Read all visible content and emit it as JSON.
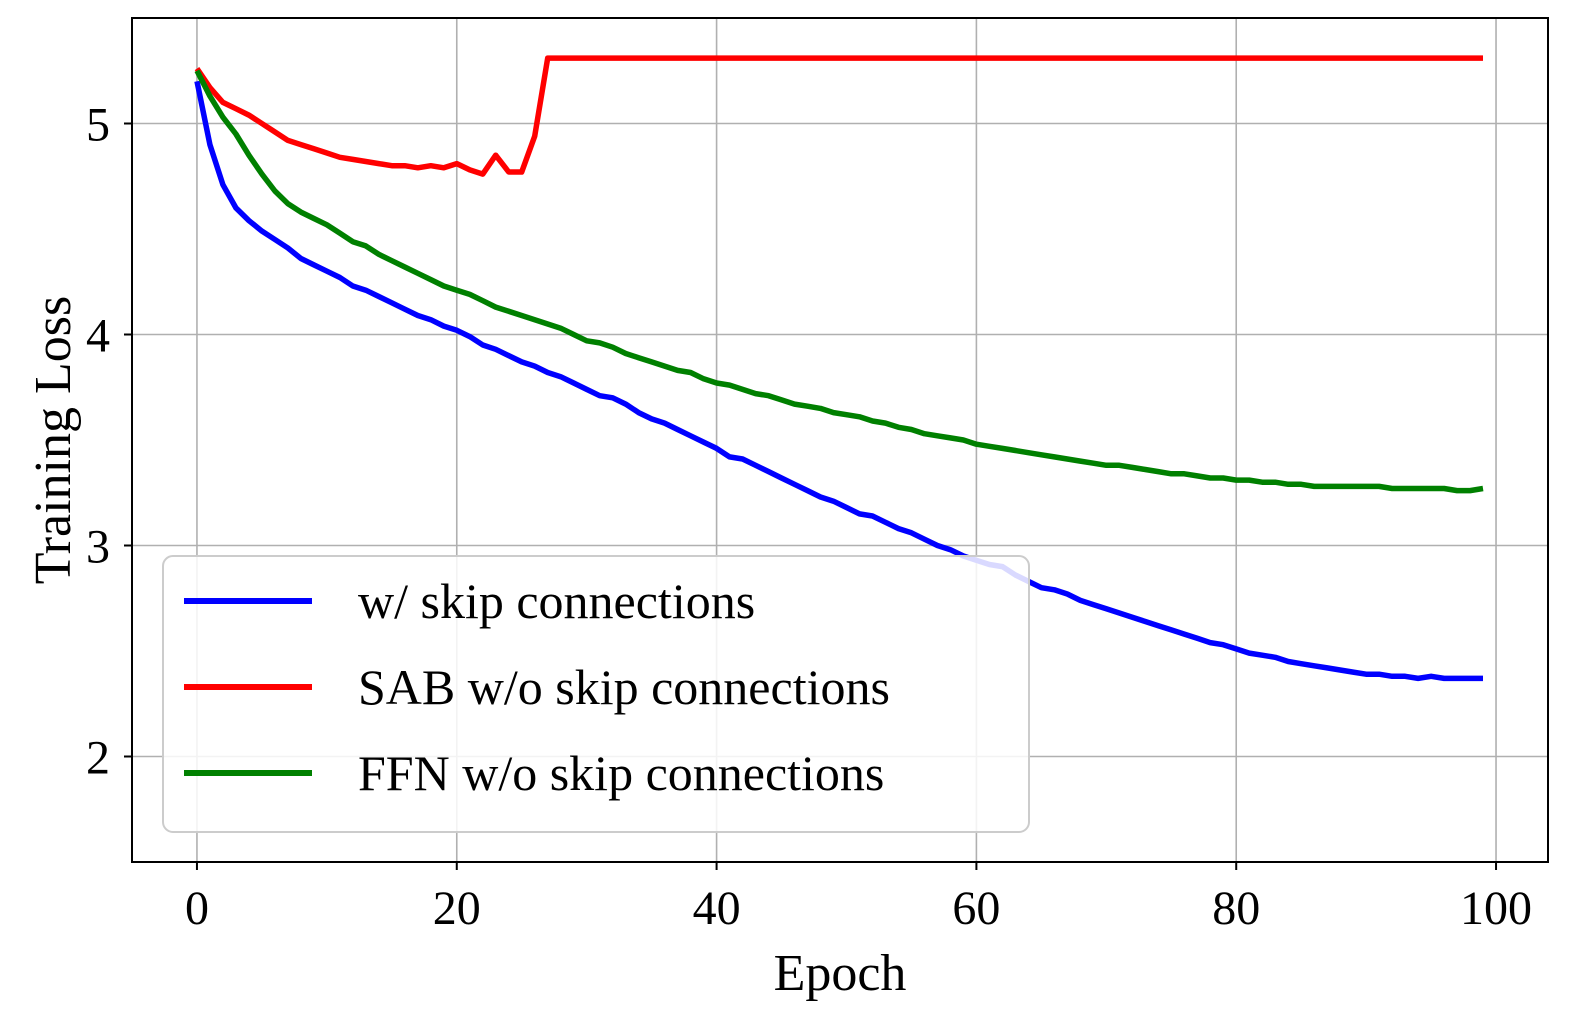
{
  "chart_data": {
    "type": "line",
    "title": "",
    "xlabel": "Epoch",
    "ylabel": "Training Loss",
    "xlim": [
      -5,
      104
    ],
    "ylim": [
      1.5,
      5.5
    ],
    "xticks": [
      0,
      20,
      40,
      60,
      80,
      100
    ],
    "yticks": [
      2,
      3,
      4,
      5
    ],
    "grid": true,
    "legend_position": "lower-left",
    "series": [
      {
        "name": "w/ skip connections",
        "color": "#0000ff",
        "x": [
          0,
          1,
          2,
          3,
          4,
          5,
          6,
          7,
          8,
          9,
          10,
          11,
          12,
          13,
          14,
          15,
          16,
          17,
          18,
          19,
          20,
          21,
          22,
          23,
          24,
          25,
          26,
          27,
          28,
          29,
          30,
          31,
          32,
          33,
          34,
          35,
          36,
          37,
          38,
          39,
          40,
          41,
          42,
          43,
          44,
          45,
          46,
          47,
          48,
          49,
          50,
          51,
          52,
          53,
          54,
          55,
          56,
          57,
          58,
          59,
          60,
          61,
          62,
          63,
          64,
          65,
          66,
          67,
          68,
          69,
          70,
          71,
          72,
          73,
          74,
          75,
          76,
          77,
          78,
          79,
          80,
          81,
          82,
          83,
          84,
          85,
          86,
          87,
          88,
          89,
          90,
          91,
          92,
          93,
          94,
          95,
          96,
          97,
          98,
          99
        ],
        "y": [
          5.2,
          4.9,
          4.71,
          4.6,
          4.54,
          4.49,
          4.45,
          4.41,
          4.36,
          4.33,
          4.3,
          4.27,
          4.23,
          4.21,
          4.18,
          4.15,
          4.12,
          4.09,
          4.07,
          4.04,
          4.02,
          3.99,
          3.95,
          3.93,
          3.9,
          3.87,
          3.85,
          3.82,
          3.8,
          3.77,
          3.74,
          3.71,
          3.7,
          3.67,
          3.63,
          3.6,
          3.58,
          3.55,
          3.52,
          3.49,
          3.46,
          3.42,
          3.41,
          3.38,
          3.35,
          3.32,
          3.29,
          3.26,
          3.23,
          3.21,
          3.18,
          3.15,
          3.14,
          3.11,
          3.08,
          3.06,
          3.03,
          3.0,
          2.98,
          2.95,
          2.93,
          2.91,
          2.9,
          2.86,
          2.83,
          2.8,
          2.79,
          2.77,
          2.74,
          2.72,
          2.7,
          2.68,
          2.66,
          2.64,
          2.62,
          2.6,
          2.58,
          2.56,
          2.54,
          2.53,
          2.51,
          2.49,
          2.48,
          2.47,
          2.45,
          2.44,
          2.43,
          2.42,
          2.41,
          2.4,
          2.39,
          2.39,
          2.38,
          2.38,
          2.37,
          2.38,
          2.37,
          2.37,
          2.37,
          2.37
        ]
      },
      {
        "name": "SAB w/o skip connections",
        "color": "#ff0000",
        "x": [
          0,
          1,
          2,
          3,
          4,
          5,
          6,
          7,
          8,
          9,
          10,
          11,
          12,
          13,
          14,
          15,
          16,
          17,
          18,
          19,
          20,
          21,
          22,
          23,
          24,
          25,
          26,
          27,
          28,
          29,
          30,
          31,
          32,
          33,
          34,
          35,
          36,
          37,
          38,
          39,
          40,
          41,
          42,
          43,
          44,
          45,
          46,
          47,
          48,
          49,
          50,
          51,
          52,
          53,
          54,
          55,
          56,
          57,
          58,
          59,
          60,
          61,
          62,
          63,
          64,
          65,
          66,
          67,
          68,
          69,
          70,
          71,
          72,
          73,
          74,
          75,
          76,
          77,
          78,
          79,
          80,
          81,
          82,
          83,
          84,
          85,
          86,
          87,
          88,
          89,
          90,
          91,
          92,
          93,
          94,
          95,
          96,
          97,
          98,
          99
        ],
        "y": [
          5.26,
          5.17,
          5.1,
          5.07,
          5.04,
          5.0,
          4.96,
          4.92,
          4.9,
          4.88,
          4.86,
          4.84,
          4.83,
          4.82,
          4.81,
          4.8,
          4.8,
          4.79,
          4.8,
          4.79,
          4.81,
          4.78,
          4.76,
          4.85,
          4.77,
          4.77,
          4.94,
          5.31,
          5.31,
          5.31,
          5.31,
          5.31,
          5.31,
          5.31,
          5.31,
          5.31,
          5.31,
          5.31,
          5.31,
          5.31,
          5.31,
          5.31,
          5.31,
          5.31,
          5.31,
          5.31,
          5.31,
          5.31,
          5.31,
          5.31,
          5.31,
          5.31,
          5.31,
          5.31,
          5.31,
          5.31,
          5.31,
          5.31,
          5.31,
          5.31,
          5.31,
          5.31,
          5.31,
          5.31,
          5.31,
          5.31,
          5.31,
          5.31,
          5.31,
          5.31,
          5.31,
          5.31,
          5.31,
          5.31,
          5.31,
          5.31,
          5.31,
          5.31,
          5.31,
          5.31,
          5.31,
          5.31,
          5.31,
          5.31,
          5.31,
          5.31,
          5.31,
          5.31,
          5.31,
          5.31,
          5.31,
          5.31,
          5.31,
          5.31,
          5.31,
          5.31,
          5.31,
          5.31,
          5.31,
          5.31
        ]
      },
      {
        "name": "FFN w/o skip connections",
        "color": "#008000",
        "x": [
          0,
          1,
          2,
          3,
          4,
          5,
          6,
          7,
          8,
          9,
          10,
          11,
          12,
          13,
          14,
          15,
          16,
          17,
          18,
          19,
          20,
          21,
          22,
          23,
          24,
          25,
          26,
          27,
          28,
          29,
          30,
          31,
          32,
          33,
          34,
          35,
          36,
          37,
          38,
          39,
          40,
          41,
          42,
          43,
          44,
          45,
          46,
          47,
          48,
          49,
          50,
          51,
          52,
          53,
          54,
          55,
          56,
          57,
          58,
          59,
          60,
          61,
          62,
          63,
          64,
          65,
          66,
          67,
          68,
          69,
          70,
          71,
          72,
          73,
          74,
          75,
          76,
          77,
          78,
          79,
          80,
          81,
          82,
          83,
          84,
          85,
          86,
          87,
          88,
          89,
          90,
          91,
          92,
          93,
          94,
          95,
          96,
          97,
          98,
          99
        ],
        "y": [
          5.25,
          5.13,
          5.03,
          4.95,
          4.85,
          4.76,
          4.68,
          4.62,
          4.58,
          4.55,
          4.52,
          4.48,
          4.44,
          4.42,
          4.38,
          4.35,
          4.32,
          4.29,
          4.26,
          4.23,
          4.21,
          4.19,
          4.16,
          4.13,
          4.11,
          4.09,
          4.07,
          4.05,
          4.03,
          4.0,
          3.97,
          3.96,
          3.94,
          3.91,
          3.89,
          3.87,
          3.85,
          3.83,
          3.82,
          3.79,
          3.77,
          3.76,
          3.74,
          3.72,
          3.71,
          3.69,
          3.67,
          3.66,
          3.65,
          3.63,
          3.62,
          3.61,
          3.59,
          3.58,
          3.56,
          3.55,
          3.53,
          3.52,
          3.51,
          3.5,
          3.48,
          3.47,
          3.46,
          3.45,
          3.44,
          3.43,
          3.42,
          3.41,
          3.4,
          3.39,
          3.38,
          3.38,
          3.37,
          3.36,
          3.35,
          3.34,
          3.34,
          3.33,
          3.32,
          3.32,
          3.31,
          3.31,
          3.3,
          3.3,
          3.29,
          3.29,
          3.28,
          3.28,
          3.28,
          3.28,
          3.28,
          3.28,
          3.27,
          3.27,
          3.27,
          3.27,
          3.27,
          3.26,
          3.26,
          3.27
        ]
      }
    ]
  }
}
